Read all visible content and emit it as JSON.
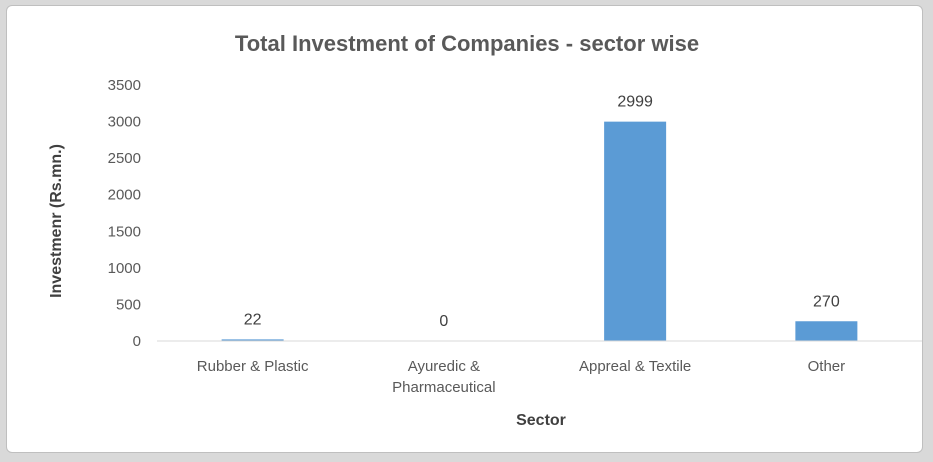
{
  "chart_data": {
    "type": "bar",
    "title": "Total  Investment of Companies  - sector wise",
    "xlabel": "Sector",
    "ylabel": "Investmenr (Rs.mn.)",
    "categories": [
      [
        "Rubber & Plastic"
      ],
      [
        "Ayuredic &",
        "Pharmaceutical"
      ],
      [
        "Appreal & Textile"
      ],
      [
        "Other"
      ]
    ],
    "values": [
      22,
      0,
      2999,
      270
    ],
    "data_labels": [
      "22",
      "0",
      "2999",
      "270"
    ],
    "ylim": [
      0,
      3500
    ],
    "yticks": [
      0,
      500,
      1000,
      1500,
      2000,
      2500,
      3000,
      3500
    ],
    "grid": false,
    "legend": "none",
    "bar_color": "#5b9bd5",
    "axis_color": "#d9d9d9"
  }
}
